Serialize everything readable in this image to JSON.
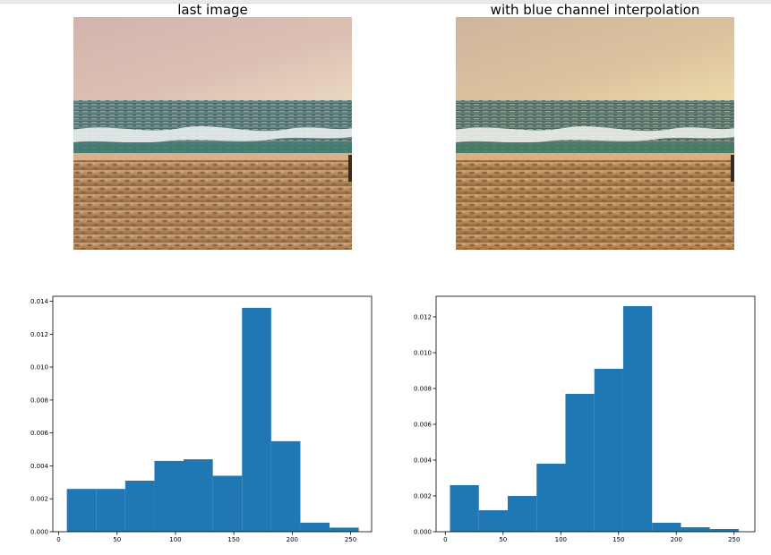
{
  "titles": {
    "left": "last image",
    "right": "with blue channel interpolation"
  },
  "colors": {
    "bar": "#1f77b4",
    "axis": "#000000"
  },
  "chart_data": [
    {
      "type": "bar",
      "title": "",
      "xlabel": "",
      "ylabel": "",
      "xlim": [
        -5,
        268
      ],
      "ylim": [
        0,
        0.0143
      ],
      "xticks": [
        "0",
        "50",
        "100",
        "150",
        "200",
        "250"
      ],
      "yticks": [
        "0.000",
        "0.002",
        "0.004",
        "0.006",
        "0.008",
        "0.010",
        "0.012",
        "0.014"
      ],
      "bin_edges": [
        7,
        32,
        57,
        82,
        107,
        132,
        157,
        182,
        207,
        232,
        257
      ],
      "values": [
        0.0026,
        0.0026,
        0.0031,
        0.0043,
        0.0044,
        0.0034,
        0.0136,
        0.0055,
        0.00055,
        0.00025
      ]
    },
    {
      "type": "bar",
      "title": "",
      "xlabel": "",
      "ylabel": "",
      "xlim": [
        -8,
        268
      ],
      "ylim": [
        0,
        0.01315
      ],
      "xticks": [
        "0",
        "50",
        "100",
        "150",
        "200",
        "250"
      ],
      "yticks": [
        "0.000",
        "0.002",
        "0.004",
        "0.006",
        "0.008",
        "0.010",
        "0.012"
      ],
      "bin_edges": [
        4,
        29,
        54,
        79,
        104,
        129,
        154,
        179,
        204,
        229,
        254
      ],
      "values": [
        0.0026,
        0.0012,
        0.002,
        0.0038,
        0.0077,
        0.0091,
        0.0126,
        0.0005,
        0.00025,
        0.00015
      ]
    }
  ]
}
